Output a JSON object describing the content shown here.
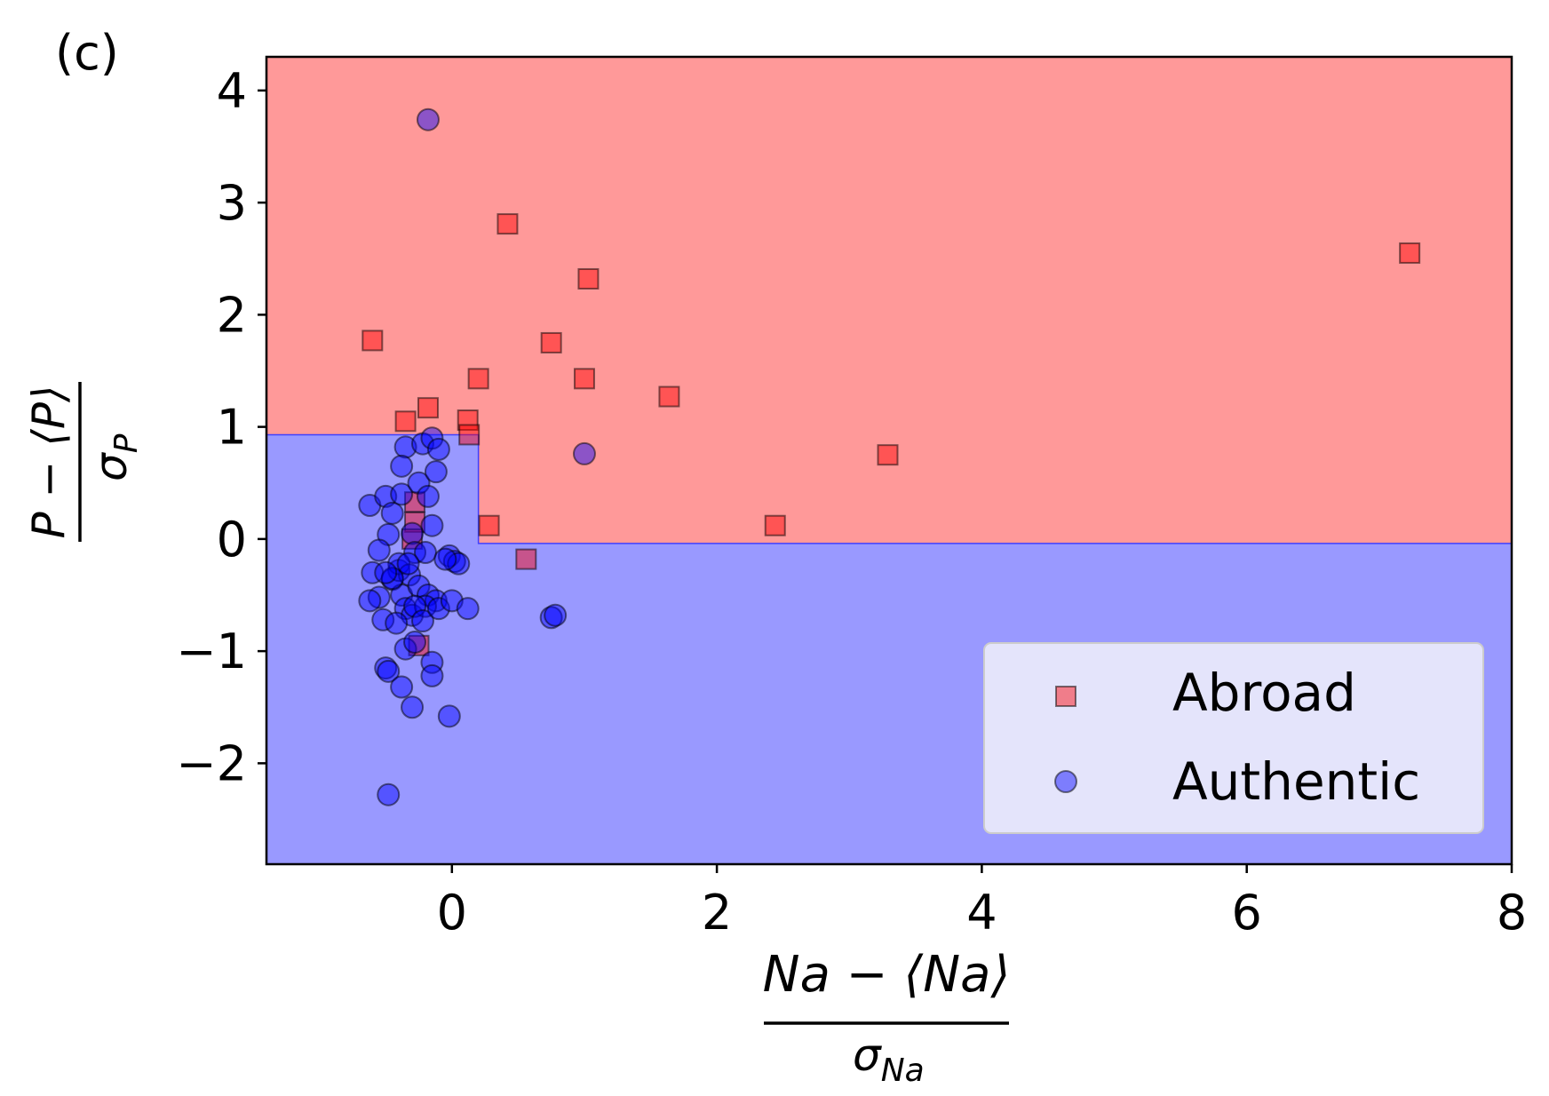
{
  "panel_label": "(c)",
  "chart_data": {
    "type": "scatter",
    "xlabel": {
      "numerator": "Na − ⟨Na⟩",
      "denominator_symbol": "σ",
      "denominator_sub": "Na"
    },
    "ylabel": {
      "numerator": "P − ⟨P⟩",
      "denominator_symbol": "σ",
      "denominator_sub": "P"
    },
    "xlim": [
      -1.4,
      8.0
    ],
    "ylim": [
      -2.9,
      4.3
    ],
    "xticks": [
      0,
      2,
      4,
      6,
      8
    ],
    "yticks": [
      -2,
      -1,
      0,
      1,
      2,
      3,
      4
    ],
    "xtick_labels": [
      "0",
      "2",
      "4",
      "6",
      "8"
    ],
    "ytick_labels": [
      "−2",
      "−1",
      "0",
      "1",
      "2",
      "3",
      "4"
    ],
    "grid": false,
    "legend_position": "lower-right",
    "background_regions": [
      {
        "class": "Abroad",
        "color": "#ff9999",
        "description": "upper region"
      },
      {
        "class": "Authentic",
        "color": "#9999ff",
        "boundary": [
          [
            -1.4,
            0.93
          ],
          [
            0.2,
            0.93
          ],
          [
            0.2,
            -0.04
          ],
          [
            8.0,
            -0.04
          ]
        ]
      }
    ],
    "series": [
      {
        "name": "Abroad",
        "marker": "square",
        "color": "#ff0000",
        "points": [
          [
            -0.6,
            1.77
          ],
          [
            0.42,
            2.81
          ],
          [
            1.03,
            2.32
          ],
          [
            7.23,
            2.55
          ],
          [
            0.75,
            1.75
          ],
          [
            0.2,
            1.43
          ],
          [
            1.0,
            1.43
          ],
          [
            1.64,
            1.27
          ],
          [
            -0.18,
            1.17
          ],
          [
            -0.35,
            1.05
          ],
          [
            0.12,
            1.06
          ],
          [
            0.13,
            0.93
          ],
          [
            3.29,
            0.75
          ],
          [
            0.28,
            0.12
          ],
          [
            2.44,
            0.12
          ],
          [
            -0.28,
            0.33
          ],
          [
            -0.28,
            0.15
          ],
          [
            -0.3,
            0.0
          ],
          [
            0.56,
            -0.18
          ],
          [
            -0.25,
            -0.95
          ]
        ]
      },
      {
        "name": "Authentic",
        "marker": "circle",
        "color": "#0000ff",
        "points": [
          [
            -0.18,
            3.74
          ],
          [
            1.0,
            0.76
          ],
          [
            -0.62,
            0.3
          ],
          [
            -0.5,
            0.38
          ],
          [
            -0.45,
            0.23
          ],
          [
            -0.48,
            0.04
          ],
          [
            -0.55,
            -0.1
          ],
          [
            -0.6,
            -0.3
          ],
          [
            -0.55,
            -0.52
          ],
          [
            -0.62,
            -0.55
          ],
          [
            -0.52,
            -0.72
          ],
          [
            -0.45,
            -0.36
          ],
          [
            -0.4,
            -0.28
          ],
          [
            -0.38,
            -0.5
          ],
          [
            -0.35,
            -0.62
          ],
          [
            -0.3,
            -0.68
          ],
          [
            -0.42,
            -0.75
          ],
          [
            -0.35,
            0.82
          ],
          [
            -0.38,
            0.65
          ],
          [
            -0.38,
            0.4
          ],
          [
            -0.25,
            0.5
          ],
          [
            -0.22,
            0.85
          ],
          [
            -0.15,
            0.9
          ],
          [
            -0.1,
            0.8
          ],
          [
            -0.12,
            0.6
          ],
          [
            -0.18,
            0.38
          ],
          [
            -0.15,
            0.12
          ],
          [
            -0.3,
            0.05
          ],
          [
            -0.28,
            -0.12
          ],
          [
            -0.2,
            -0.12
          ],
          [
            -0.4,
            -0.22
          ],
          [
            -0.32,
            -0.32
          ],
          [
            -0.25,
            -0.42
          ],
          [
            -0.18,
            -0.5
          ],
          [
            -0.12,
            -0.55
          ],
          [
            -0.2,
            -0.6
          ],
          [
            -0.28,
            -0.6
          ],
          [
            -0.22,
            -0.73
          ],
          [
            -0.1,
            -0.62
          ],
          [
            -0.02,
            -0.15
          ],
          [
            0.02,
            -0.2
          ],
          [
            0.05,
            -0.22
          ],
          [
            0.0,
            -0.55
          ],
          [
            0.12,
            -0.62
          ],
          [
            0.75,
            -0.7
          ],
          [
            0.78,
            -0.68
          ],
          [
            -0.35,
            -0.98
          ],
          [
            -0.28,
            -0.92
          ],
          [
            -0.15,
            -1.1
          ],
          [
            -0.15,
            -1.22
          ],
          [
            -0.5,
            -1.15
          ],
          [
            -0.48,
            -1.18
          ],
          [
            -0.38,
            -1.32
          ],
          [
            -0.3,
            -1.5
          ],
          [
            -0.02,
            -1.58
          ],
          [
            -0.48,
            -2.28
          ],
          [
            -0.45,
            -0.35
          ],
          [
            -0.33,
            -0.22
          ],
          [
            -0.5,
            -0.3
          ],
          [
            -0.05,
            -0.18
          ]
        ]
      }
    ]
  }
}
